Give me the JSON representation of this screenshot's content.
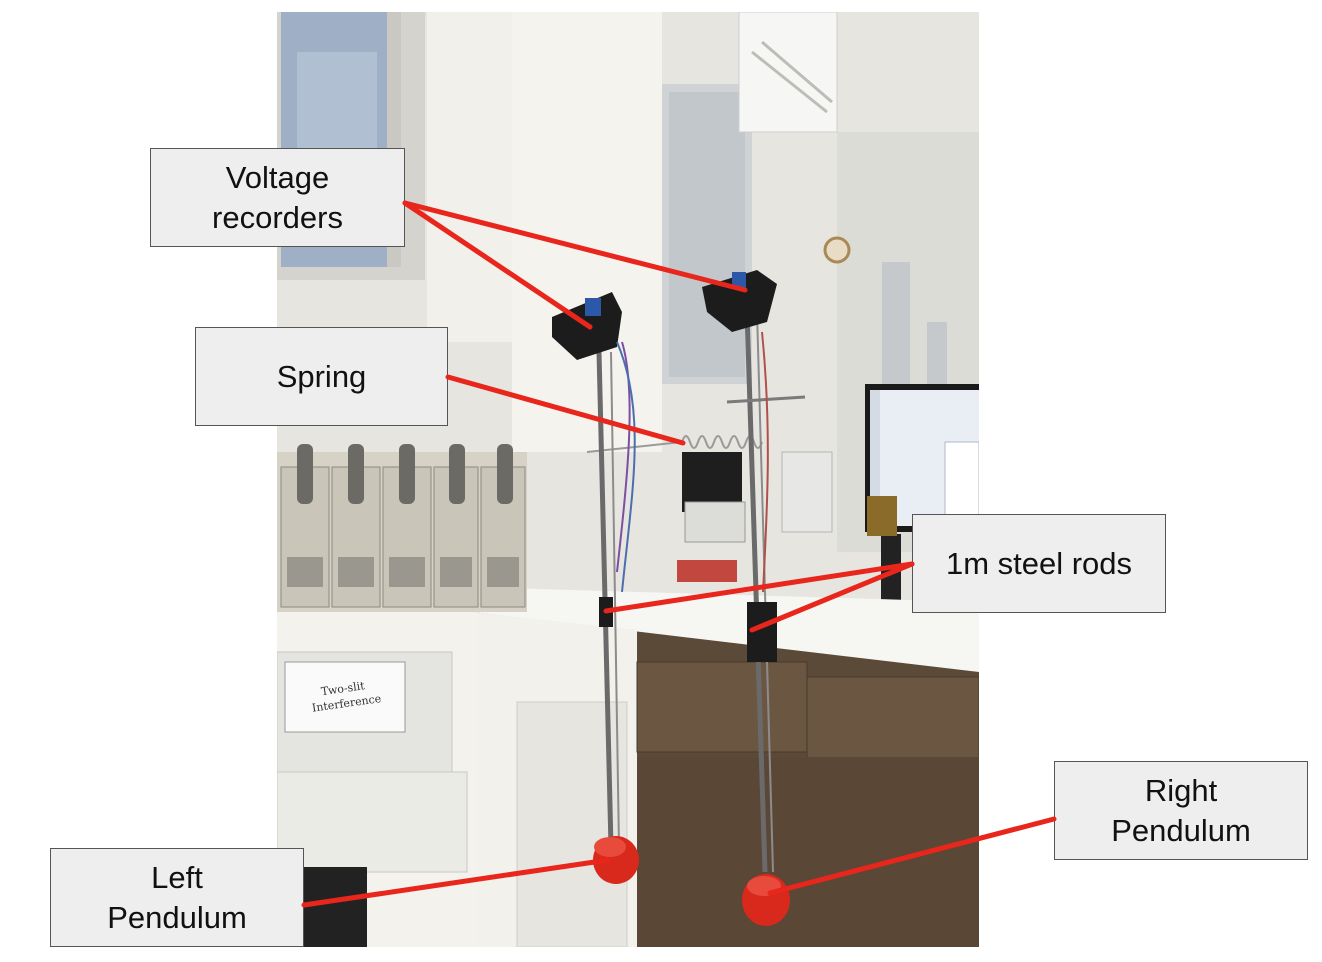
{
  "labels": {
    "voltage_recorders": "Voltage\nrecorders",
    "spring": "Spring",
    "steel_rods": "1m steel rods",
    "left_pendulum": "Left\nPendulum",
    "right_pendulum": "Right\nPendulum"
  },
  "photo": {
    "bin_label": "Two-slit\nInterference"
  },
  "colors": {
    "annotation_line": "#e8261b",
    "label_fill": "#eeeeee",
    "label_border": "#555555",
    "pendulum_bob": "#d9281c"
  }
}
